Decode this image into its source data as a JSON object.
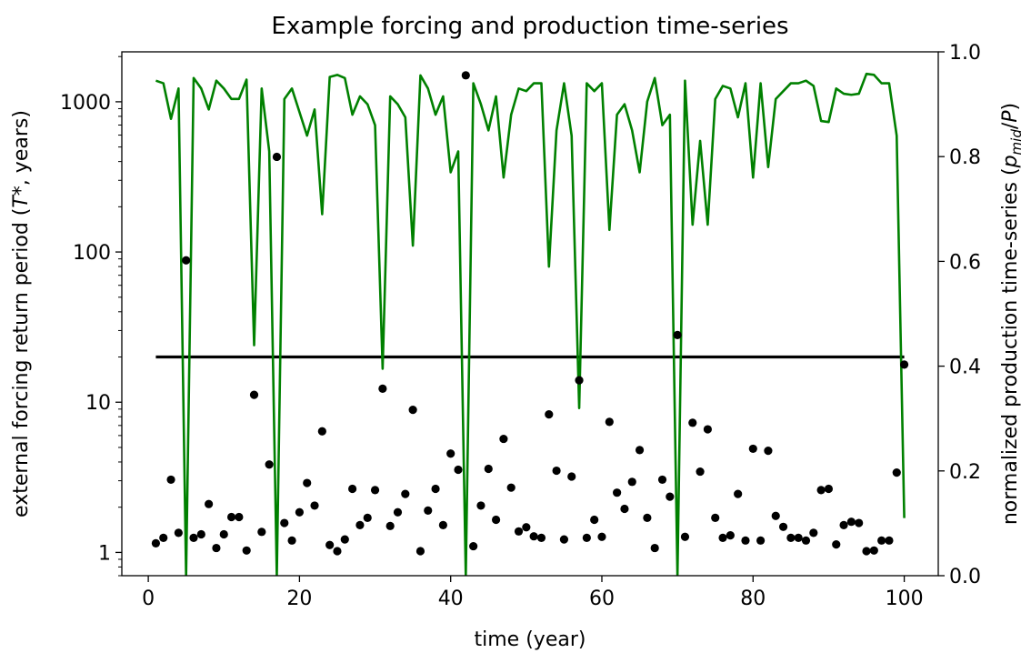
{
  "chart_data": {
    "type": "line+scatter",
    "title": "Example forcing and production time-series",
    "xlabel": "time (year)",
    "ylabel_left": "external forcing return period (T*, years)",
    "ylabel_left_parts": [
      "external forcing return period (",
      "T",
      "*",
      ", years)"
    ],
    "ylabel_right": "normalized production time-series (p_mid/P)",
    "ylabel_right_parts": [
      "normalized production time-series (",
      "p",
      "mid",
      "/",
      "P",
      ")"
    ],
    "xlim": [
      -3.5,
      104.5
    ],
    "xticks": [
      0,
      20,
      40,
      60,
      80,
      100
    ],
    "ylim_left": [
      0.7,
      2150
    ],
    "yscale_left": "log",
    "yticks_left": [
      1,
      10,
      100,
      1000
    ],
    "ylim_right": [
      0.0,
      1.0
    ],
    "yticks_right": [
      0.0,
      0.2,
      0.4,
      0.6,
      0.8,
      1.0
    ],
    "threshold": {
      "axis": "left",
      "value": 20,
      "x_range": [
        1,
        100
      ],
      "color": "#000000"
    },
    "forcing_points": {
      "axis": "left",
      "color": "#000000",
      "x": [
        1,
        2,
        3,
        4,
        5,
        6,
        7,
        8,
        9,
        10,
        11,
        12,
        13,
        14,
        15,
        16,
        17,
        18,
        19,
        20,
        21,
        22,
        23,
        24,
        25,
        26,
        27,
        28,
        29,
        30,
        31,
        32,
        33,
        34,
        35,
        36,
        37,
        38,
        39,
        40,
        41,
        42,
        43,
        44,
        45,
        46,
        47,
        48,
        49,
        50,
        51,
        52,
        53,
        54,
        55,
        56,
        57,
        58,
        59,
        60,
        61,
        62,
        63,
        64,
        65,
        66,
        67,
        68,
        69,
        70,
        71,
        72,
        73,
        74,
        75,
        76,
        77,
        78,
        79,
        80,
        81,
        82,
        83,
        84,
        85,
        86,
        87,
        88,
        89,
        90,
        91,
        92,
        93,
        94,
        95,
        96,
        97,
        98,
        99,
        100
      ],
      "y": [
        1.15,
        1.25,
        3.05,
        1.35,
        88,
        1.25,
        1.32,
        2.1,
        1.07,
        1.32,
        1.72,
        1.72,
        1.03,
        11.2,
        1.37,
        3.85,
        430,
        1.57,
        1.2,
        1.85,
        2.9,
        2.05,
        6.4,
        1.12,
        1.02,
        1.22,
        2.65,
        1.52,
        1.7,
        2.6,
        12.3,
        1.5,
        1.85,
        2.45,
        8.9,
        1.02,
        1.9,
        2.65,
        1.52,
        4.55,
        3.55,
        1500,
        1.1,
        2.05,
        3.6,
        1.65,
        5.7,
        2.7,
        1.38,
        1.47,
        1.28,
        1.25,
        8.3,
        3.5,
        1.22,
        3.2,
        14,
        1.25,
        1.65,
        1.27,
        7.4,
        2.5,
        1.95,
        2.95,
        4.8,
        1.7,
        1.07,
        3.05,
        2.35,
        28,
        1.27,
        7.3,
        3.45,
        6.6,
        1.7,
        1.25,
        1.3,
        2.45,
        1.2,
        4.9,
        1.2,
        4.75,
        1.75,
        1.48,
        1.25,
        1.25,
        1.2,
        1.35,
        2.6,
        2.65,
        1.13,
        1.52,
        1.6,
        1.57,
        1.02,
        1.03,
        1.2,
        1.2,
        3.4,
        17.8
      ]
    },
    "production_series": {
      "axis": "right",
      "color": "#008000",
      "x": [
        1,
        2,
        3,
        4,
        5,
        6,
        7,
        8,
        9,
        10,
        11,
        12,
        13,
        14,
        15,
        16,
        17,
        18,
        19,
        20,
        21,
        22,
        23,
        24,
        25,
        26,
        27,
        28,
        29,
        30,
        31,
        32,
        33,
        34,
        35,
        36,
        37,
        38,
        39,
        40,
        41,
        42,
        43,
        44,
        45,
        46,
        47,
        48,
        49,
        50,
        51,
        52,
        53,
        54,
        55,
        56,
        57,
        58,
        59,
        60,
        61,
        62,
        63,
        64,
        65,
        66,
        67,
        68,
        69,
        70,
        71,
        72,
        73,
        74,
        75,
        76,
        77,
        78,
        79,
        80,
        81,
        82,
        83,
        84,
        85,
        86,
        87,
        88,
        89,
        90,
        91,
        92,
        93,
        94,
        95,
        96,
        97,
        98,
        99,
        100
      ],
      "y": [
        0.945,
        0.94,
        0.872,
        0.93,
        0.0,
        0.95,
        0.93,
        0.89,
        0.945,
        0.93,
        0.91,
        0.91,
        0.947,
        0.44,
        0.93,
        0.81,
        0.0,
        0.91,
        0.93,
        0.885,
        0.84,
        0.89,
        0.69,
        0.952,
        0.956,
        0.95,
        0.88,
        0.915,
        0.9,
        0.86,
        0.395,
        0.915,
        0.9,
        0.875,
        0.63,
        0.955,
        0.93,
        0.88,
        0.915,
        0.77,
        0.81,
        0.0,
        0.94,
        0.9,
        0.85,
        0.915,
        0.76,
        0.88,
        0.93,
        0.925,
        0.94,
        0.94,
        0.59,
        0.85,
        0.94,
        0.84,
        0.32,
        0.94,
        0.925,
        0.94,
        0.66,
        0.88,
        0.9,
        0.85,
        0.77,
        0.905,
        0.95,
        0.86,
        0.88,
        0.0,
        0.945,
        0.67,
        0.83,
        0.67,
        0.91,
        0.935,
        0.93,
        0.875,
        0.94,
        0.76,
        0.94,
        0.78,
        0.91,
        0.925,
        0.94,
        0.94,
        0.945,
        0.935,
        0.868,
        0.866,
        0.93,
        0.92,
        0.918,
        0.92,
        0.958,
        0.956,
        0.94,
        0.94,
        0.84,
        0.11
      ]
    }
  }
}
